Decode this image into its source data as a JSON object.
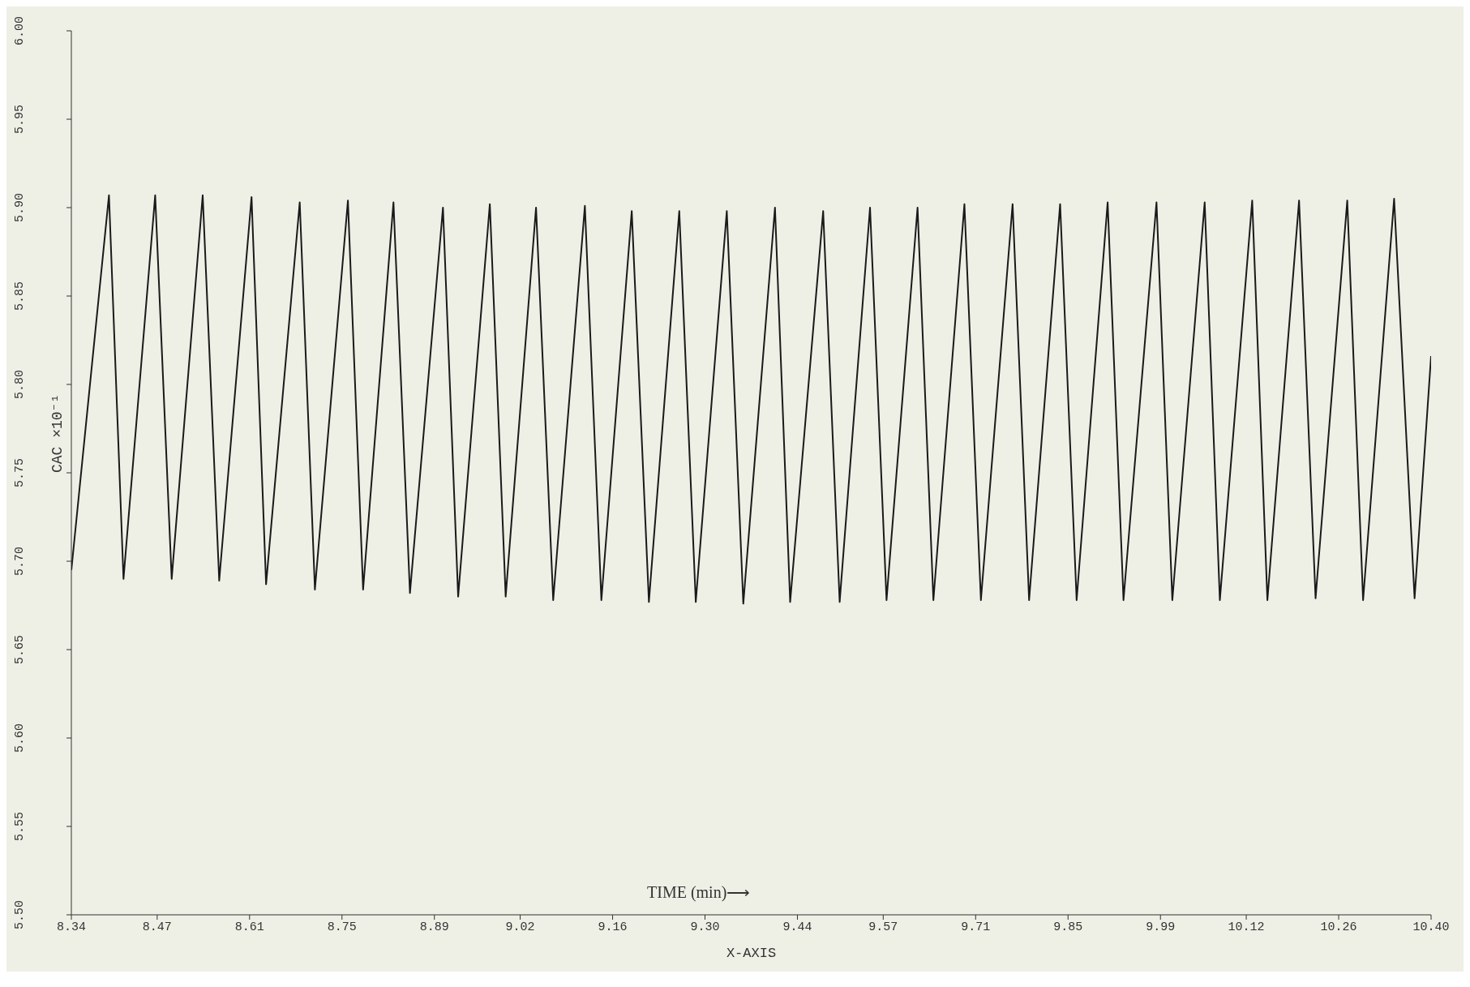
{
  "chart_data": {
    "type": "line",
    "xlabel": "X-AXIS",
    "ylabel": "CAC  ×10⁻¹",
    "annotations": [
      "TIME (min)⟶"
    ],
    "x": [
      8.34,
      8.397,
      8.419,
      8.467,
      8.492,
      8.539,
      8.564,
      8.613,
      8.635,
      8.686,
      8.709,
      8.759,
      8.782,
      8.828,
      8.853,
      8.903,
      8.926,
      8.974,
      8.998,
      9.044,
      9.07,
      9.118,
      9.143,
      9.189,
      9.215,
      9.261,
      9.286,
      9.333,
      9.358,
      9.406,
      9.429,
      9.479,
      9.504,
      9.55,
      9.575,
      9.622,
      9.646,
      9.693,
      9.718,
      9.766,
      9.791,
      9.838,
      9.863,
      9.91,
      9.934,
      9.984,
      10.008,
      10.057,
      10.08,
      10.129,
      10.152,
      10.2,
      10.225,
      10.273,
      10.297,
      10.344,
      10.375,
      10.4
    ],
    "series": [
      {
        "color": "#1a1a1a",
        "values": [
          5.695,
          5.907,
          5.69,
          5.907,
          5.69,
          5.907,
          5.689,
          5.906,
          5.687,
          5.903,
          5.684,
          5.904,
          5.684,
          5.903,
          5.682,
          5.9,
          5.68,
          5.902,
          5.68,
          5.9,
          5.678,
          5.901,
          5.678,
          5.898,
          5.677,
          5.898,
          5.677,
          5.898,
          5.676,
          5.9,
          5.677,
          5.898,
          5.677,
          5.9,
          5.678,
          5.9,
          5.678,
          5.902,
          5.678,
          5.902,
          5.678,
          5.902,
          5.678,
          5.903,
          5.678,
          5.903,
          5.678,
          5.903,
          5.678,
          5.904,
          5.678,
          5.904,
          5.679,
          5.904,
          5.678,
          5.905,
          5.679,
          5.816
        ]
      }
    ],
    "xlim": [
      8.34,
      10.4
    ],
    "xticks": [
      {
        "value": 8.34,
        "label": "8.34"
      },
      {
        "value": 8.47,
        "label": "8.47"
      },
      {
        "value": 8.61,
        "label": "8.61"
      },
      {
        "value": 8.75,
        "label": "8.75"
      },
      {
        "value": 8.89,
        "label": "8.89"
      },
      {
        "value": 9.02,
        "label": "9.02"
      },
      {
        "value": 9.16,
        "label": "9.16"
      },
      {
        "value": 9.3,
        "label": "9.30"
      },
      {
        "value": 9.44,
        "label": "9.44"
      },
      {
        "value": 9.57,
        "label": "9.57"
      },
      {
        "value": 9.71,
        "label": "9.71"
      },
      {
        "value": 9.85,
        "label": "9.85"
      },
      {
        "value": 9.99,
        "label": "9.99"
      },
      {
        "value": 10.12,
        "label": "10.12"
      },
      {
        "value": 10.26,
        "label": "10.26"
      },
      {
        "value": 10.4,
        "label": "10.40"
      }
    ],
    "ylim": [
      5.5,
      6.0
    ],
    "yticks": [
      {
        "value": 5.5,
        "label": "5.50"
      },
      {
        "value": 5.55,
        "label": "5.55"
      },
      {
        "value": 5.6,
        "label": "5.60"
      },
      {
        "value": 5.65,
        "label": "5.65"
      },
      {
        "value": 5.7,
        "label": "5.70"
      },
      {
        "value": 5.75,
        "label": "5.75"
      },
      {
        "value": 5.8,
        "label": "5.80"
      },
      {
        "value": 5.85,
        "label": "5.85"
      },
      {
        "value": 5.9,
        "label": "5.90"
      },
      {
        "value": 5.95,
        "label": "5.95"
      },
      {
        "value": 6.0,
        "label": "6.00"
      }
    ],
    "grid": false,
    "legend": false,
    "marker": "none",
    "line_style": "solid"
  }
}
